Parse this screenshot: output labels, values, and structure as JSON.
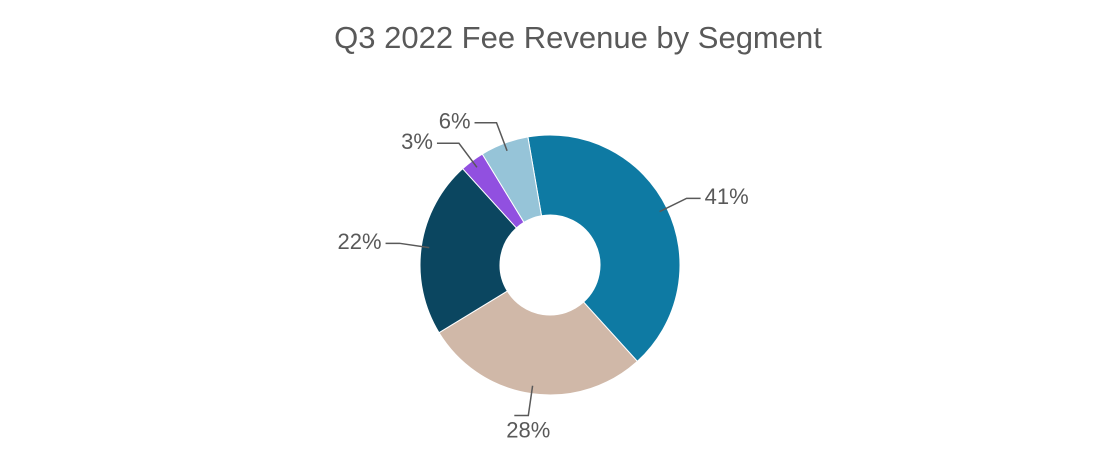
{
  "chart_data": {
    "type": "donut",
    "title": "Q3 2022 Fee Revenue by Segment",
    "values": [
      41,
      28,
      22,
      3,
      6
    ],
    "value_labels": [
      "41%",
      "28%",
      "22%",
      "3%",
      "6%"
    ],
    "colors": [
      "#0e7aa3",
      "#d0b8a8",
      "#0b4660",
      "#9150e0",
      "#96c4d8"
    ]
  }
}
